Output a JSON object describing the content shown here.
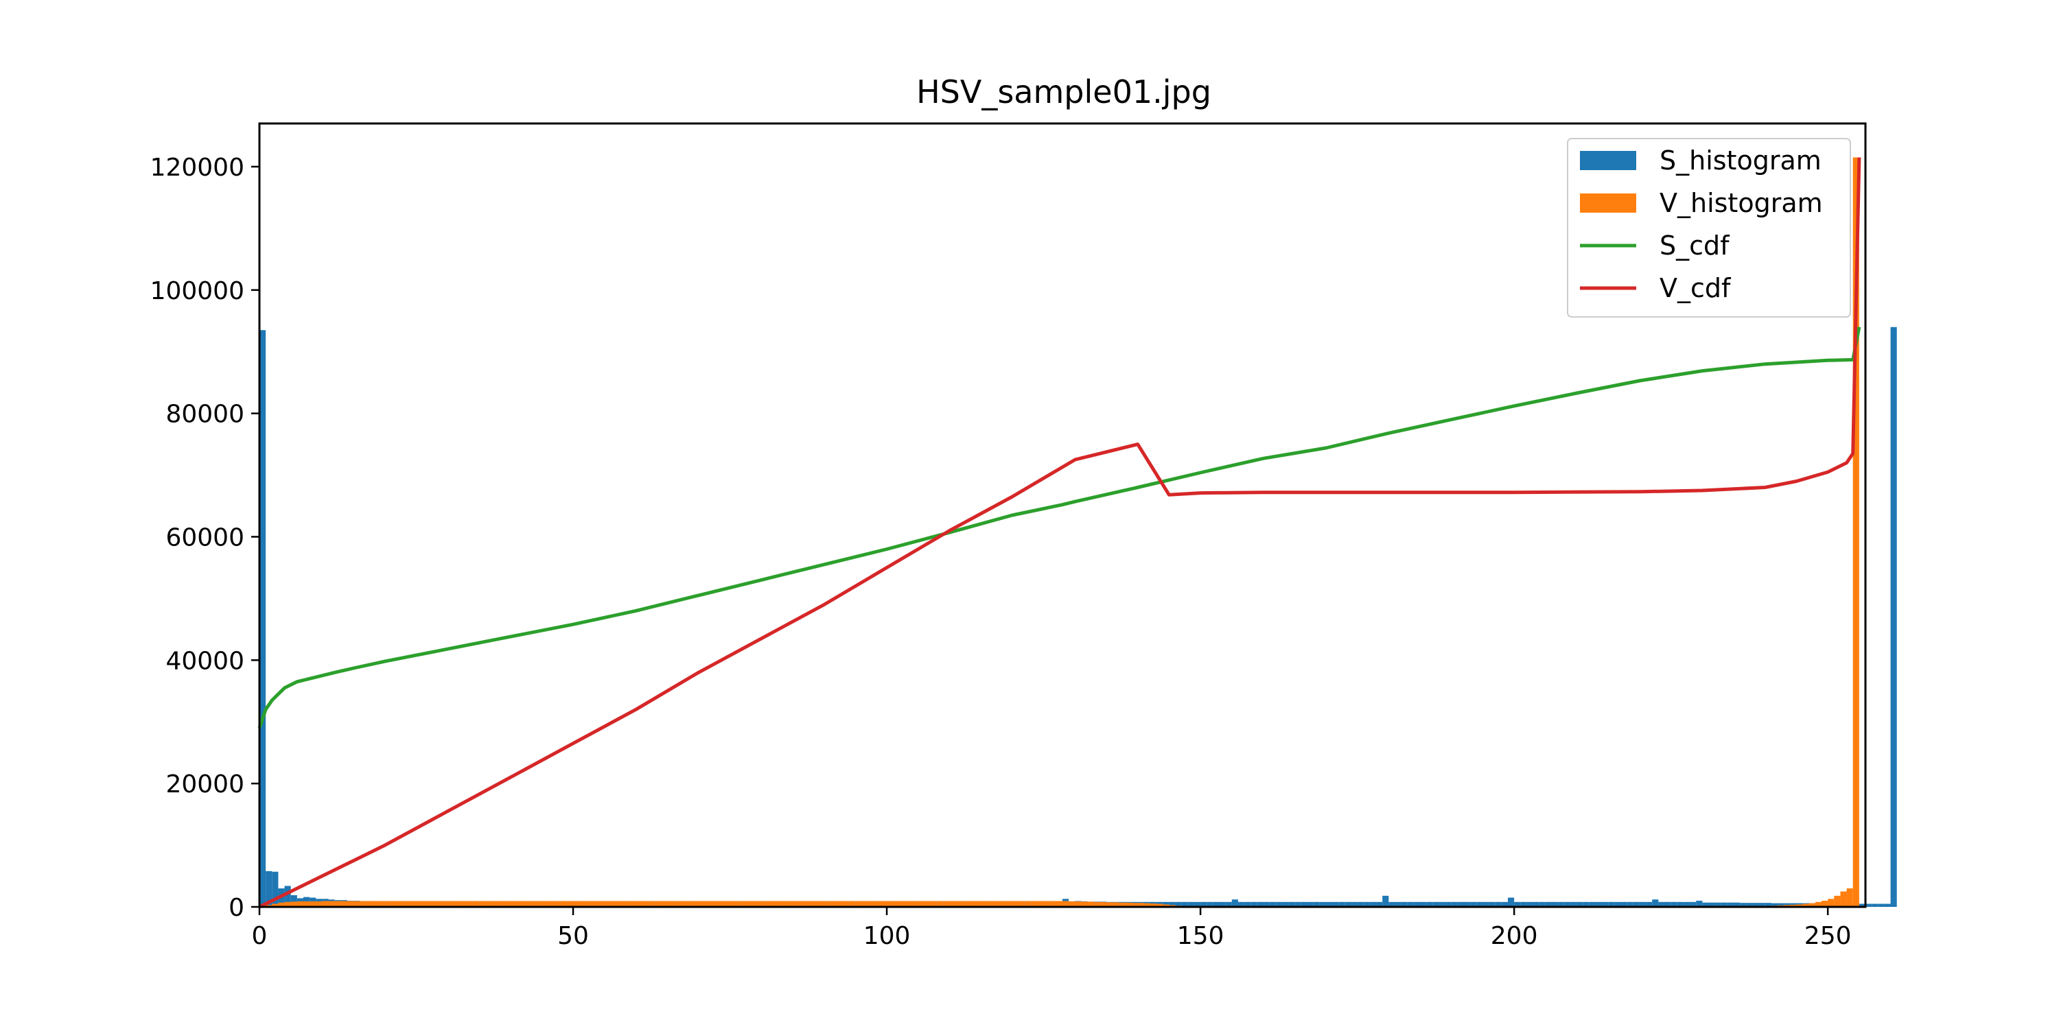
{
  "chart_data": {
    "type": "bar",
    "title": "HSV_sample01.jpg",
    "xlabel": "",
    "ylabel": "",
    "xlim": [
      0,
      256
    ],
    "ylim": [
      0,
      127000
    ],
    "x_ticks": [
      0,
      50,
      100,
      150,
      200,
      250
    ],
    "y_ticks": [
      0,
      20000,
      40000,
      60000,
      80000,
      100000,
      120000
    ],
    "grid": false,
    "legend_position": "top-right",
    "series": [
      {
        "name": "S_histogram",
        "kind": "histogram",
        "color": "#1f77b4",
        "values": [
          93500,
          5800,
          5700,
          3000,
          3400,
          1900,
          1400,
          1600,
          1500,
          1300,
          1300,
          1200,
          1100,
          1100,
          1000,
          1000,
          950,
          950,
          900,
          900,
          900,
          900,
          900,
          900,
          900,
          900,
          900,
          900,
          900,
          900,
          900,
          900,
          900,
          900,
          900,
          900,
          900,
          900,
          900,
          900,
          900,
          900,
          900,
          900,
          900,
          900,
          900,
          900,
          900,
          900,
          900,
          900,
          900,
          900,
          900,
          900,
          900,
          900,
          900,
          900,
          900,
          900,
          900,
          900,
          900,
          900,
          900,
          900,
          900,
          900,
          900,
          900,
          900,
          900,
          900,
          900,
          900,
          900,
          900,
          900,
          900,
          900,
          900,
          900,
          900,
          900,
          900,
          900,
          900,
          900,
          900,
          900,
          900,
          900,
          900,
          900,
          900,
          900,
          900,
          900,
          900,
          900,
          900,
          900,
          900,
          900,
          900,
          900,
          900,
          900,
          900,
          900,
          900,
          900,
          900,
          900,
          900,
          900,
          900,
          900,
          900,
          900,
          900,
          900,
          900,
          900,
          900,
          900,
          1300,
          900,
          950,
          900,
          850,
          850,
          850,
          800,
          800,
          800,
          800,
          800,
          800,
          800,
          800,
          800,
          800,
          800,
          800,
          800,
          800,
          800,
          800,
          800,
          800,
          800,
          800,
          1200,
          800,
          800,
          800,
          800,
          800,
          800,
          800,
          800,
          800,
          800,
          800,
          800,
          800,
          800,
          800,
          800,
          800,
          800,
          800,
          800,
          800,
          800,
          800,
          1800,
          800,
          800,
          800,
          800,
          800,
          800,
          800,
          800,
          800,
          800,
          800,
          800,
          800,
          800,
          800,
          800,
          800,
          800,
          800,
          1500,
          800,
          800,
          800,
          800,
          800,
          800,
          800,
          800,
          800,
          800,
          800,
          800,
          800,
          800,
          800,
          800,
          800,
          800,
          800,
          800,
          800,
          800,
          1200,
          800,
          800,
          800,
          800,
          800,
          800,
          1000,
          700,
          700,
          700,
          700,
          700,
          700,
          650,
          650,
          650,
          650,
          650,
          600,
          600,
          600,
          600,
          600,
          600,
          600,
          550,
          550,
          550,
          550,
          550,
          500,
          500,
          500,
          500,
          500,
          500,
          500,
          94000
        ],
        "notes_y": "approximate counts per value bin 0-255"
      },
      {
        "name": "V_histogram",
        "kind": "histogram",
        "color": "#ff7f0e",
        "values": [
          200,
          300,
          500,
          700,
          800,
          850,
          900,
          900,
          900,
          900,
          950,
          950,
          950,
          950,
          950,
          950,
          950,
          950,
          950,
          950,
          950,
          950,
          950,
          950,
          950,
          950,
          950,
          950,
          950,
          950,
          950,
          950,
          950,
          950,
          950,
          950,
          950,
          950,
          950,
          950,
          950,
          950,
          950,
          950,
          950,
          950,
          950,
          950,
          950,
          950,
          950,
          950,
          950,
          950,
          950,
          950,
          950,
          950,
          950,
          950,
          950,
          950,
          950,
          950,
          950,
          950,
          950,
          950,
          950,
          950,
          950,
          950,
          950,
          950,
          950,
          950,
          950,
          950,
          950,
          950,
          950,
          950,
          950,
          950,
          950,
          950,
          950,
          950,
          950,
          950,
          950,
          950,
          950,
          950,
          950,
          950,
          950,
          950,
          950,
          950,
          950,
          950,
          950,
          950,
          950,
          950,
          950,
          950,
          950,
          950,
          950,
          950,
          950,
          950,
          950,
          950,
          950,
          950,
          950,
          950,
          950,
          950,
          950,
          950,
          950,
          950,
          950,
          950,
          950,
          900,
          900,
          850,
          850,
          800,
          800,
          750,
          750,
          700,
          700,
          650,
          650,
          600,
          550,
          500,
          400,
          300,
          200,
          150,
          100,
          80,
          60,
          50,
          40,
          30,
          30,
          20,
          20,
          20,
          20,
          20,
          20,
          20,
          20,
          20,
          20,
          20,
          20,
          20,
          20,
          20,
          20,
          20,
          20,
          20,
          20,
          20,
          20,
          20,
          20,
          20,
          20,
          20,
          20,
          20,
          20,
          20,
          20,
          20,
          20,
          20,
          20,
          20,
          20,
          20,
          20,
          20,
          20,
          20,
          20,
          20,
          20,
          20,
          20,
          20,
          20,
          20,
          20,
          20,
          20,
          20,
          20,
          20,
          20,
          20,
          20,
          20,
          20,
          20,
          20,
          20,
          20,
          20,
          20,
          20,
          20,
          20,
          20,
          30,
          30,
          30,
          40,
          40,
          50,
          50,
          60,
          70,
          80,
          100,
          120,
          140,
          160,
          200,
          250,
          300,
          350,
          400,
          500,
          600,
          800,
          1000,
          1300,
          1800,
          2500,
          3000,
          121500
        ]
      },
      {
        "name": "S_cdf",
        "kind": "line",
        "color": "#2ca02c",
        "x": [
          0,
          1,
          2,
          3,
          4,
          5,
          6,
          8,
          10,
          12,
          15,
          20,
          25,
          30,
          40,
          50,
          60,
          70,
          80,
          90,
          100,
          110,
          120,
          128,
          130,
          140,
          150,
          160,
          170,
          180,
          190,
          200,
          210,
          220,
          230,
          240,
          250,
          254,
          255
        ],
        "y": [
          29000,
          32000,
          33500,
          34500,
          35500,
          36000,
          36500,
          37000,
          37500,
          38000,
          38700,
          39800,
          40800,
          41800,
          43800,
          45800,
          48000,
          50500,
          53000,
          55500,
          58000,
          60700,
          63500,
          65200,
          65700,
          68000,
          70400,
          72700,
          74400,
          76800,
          79000,
          81200,
          83300,
          85300,
          86900,
          88000,
          88600,
          88700,
          94000
        ]
      },
      {
        "name": "V_cdf",
        "kind": "line",
        "color": "#d62728",
        "x": [
          0,
          5,
          10,
          15,
          20,
          30,
          40,
          50,
          60,
          70,
          80,
          90,
          100,
          110,
          120,
          130,
          140,
          145,
          150,
          160,
          180,
          200,
          220,
          230,
          240,
          245,
          250,
          253,
          254,
          255
        ],
        "y": [
          0,
          2500,
          5000,
          7500,
          10000,
          15500,
          21000,
          26500,
          32000,
          38000,
          43500,
          49000,
          55000,
          61000,
          66500,
          72500,
          75000,
          66800,
          67100,
          67200,
          67200,
          67200,
          67300,
          67500,
          68000,
          69000,
          70500,
          72000,
          73500,
          121500
        ]
      }
    ]
  }
}
